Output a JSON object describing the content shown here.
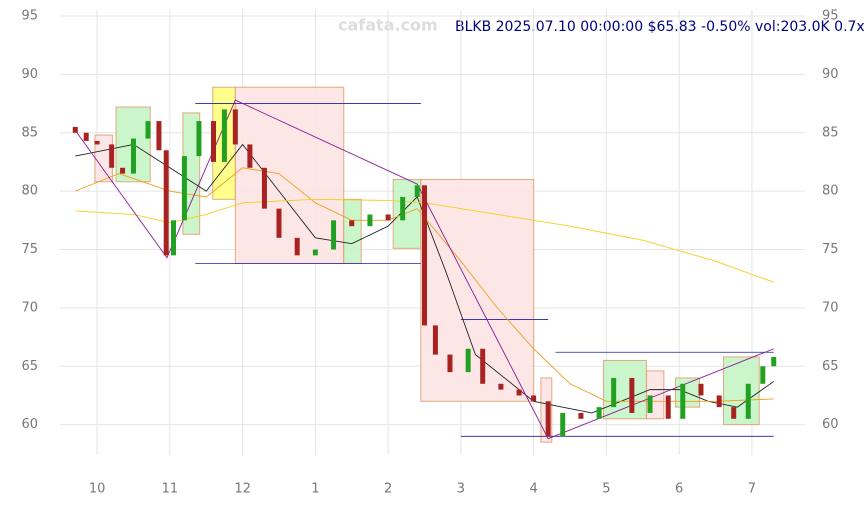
{
  "chart_data": {
    "type": "candlestick",
    "watermark": "cafata.com",
    "info": "BLKB 2025.07.10 00:00:00 $65.83 -0.50% vol:203.0K 0.7x",
    "xlim": [
      9.6,
      19.4
    ],
    "xticks": [
      {
        "value": 10,
        "label": "10"
      },
      {
        "value": 11,
        "label": "11"
      },
      {
        "value": 12,
        "label": "12"
      },
      {
        "value": 13,
        "label": "1"
      },
      {
        "value": 14,
        "label": "2"
      },
      {
        "value": 15,
        "label": "3"
      },
      {
        "value": 16,
        "label": "4"
      },
      {
        "value": 17,
        "label": "5"
      },
      {
        "value": 18,
        "label": "6"
      },
      {
        "value": 19,
        "label": "7"
      }
    ],
    "ylim": [
      57.4,
      95
    ],
    "yticks": [
      60,
      65,
      70,
      75,
      80,
      85,
      90,
      95
    ],
    "grid": true,
    "up_color": "#22a022",
    "down_color": "#a82222",
    "x": [
      9.7,
      9.85,
      10.0,
      10.2,
      10.35,
      10.5,
      10.7,
      10.85,
      10.95,
      11.05,
      11.2,
      11.4,
      11.6,
      11.75,
      11.9,
      12.1,
      12.3,
      12.5,
      12.75,
      13.0,
      13.25,
      13.5,
      13.75,
      14.0,
      14.2,
      14.4,
      14.5,
      14.65,
      14.85,
      15.1,
      15.3,
      15.55,
      15.8,
      16.0,
      16.2,
      16.4,
      16.65,
      16.9,
      17.1,
      17.35,
      17.6,
      17.85,
      18.05,
      18.3,
      18.55,
      18.75,
      18.95,
      19.15,
      19.3
    ],
    "open": [
      85.5,
      85,
      84.3,
      84,
      82,
      81.5,
      84.5,
      86,
      83.5,
      74.5,
      77.5,
      83,
      86,
      82.5,
      87,
      84,
      82,
      78.5,
      76,
      74.5,
      75,
      77.5,
      77,
      78,
      77.5,
      79.5,
      80.5,
      68.5,
      66,
      64.5,
      66.5,
      63.5,
      63,
      62.5,
      62,
      59,
      61,
      60.5,
      61.5,
      64,
      61,
      62.5,
      60.5,
      63.5,
      62.5,
      61.5,
      60.5,
      63.5,
      65
    ],
    "close": [
      85,
      84.3,
      84,
      82,
      81.5,
      84.5,
      86,
      83.5,
      74.5,
      77.5,
      83,
      86,
      82.5,
      87,
      84,
      82,
      78.5,
      76,
      74.5,
      75,
      77.5,
      77,
      78,
      77.5,
      79.5,
      80.5,
      68.5,
      66,
      64.5,
      66.5,
      63.5,
      63,
      62.5,
      62,
      59,
      61,
      60.5,
      61.5,
      64,
      61,
      62.5,
      60.5,
      63.5,
      62.5,
      61.5,
      60.5,
      63.5,
      65,
      65.8
    ],
    "lines": [
      {
        "color": "#222222",
        "x": [
          9.7,
          10.5,
          11.0,
          11.5,
          12.0,
          12.5,
          13.0,
          13.5,
          14.0,
          14.4,
          14.8,
          15.2,
          15.6,
          16.0,
          16.4,
          16.8,
          17.2,
          17.6,
          18.0,
          18.4,
          18.8,
          19.3
        ],
        "values": [
          83,
          84,
          82,
          80,
          84,
          80,
          76,
          75.5,
          77,
          79.5,
          73,
          66,
          64,
          62,
          61.5,
          61,
          62,
          63,
          63,
          62,
          61.5,
          63.7
        ]
      },
      {
        "color": "#f0a020",
        "x": [
          9.7,
          10.3,
          11.0,
          11.5,
          12.0,
          12.5,
          13.0,
          13.5,
          14.0,
          14.4,
          15.0,
          15.5,
          16.0,
          16.5,
          17.0,
          17.5,
          18.0,
          18.5,
          19.3
        ],
        "values": [
          80,
          81.5,
          80,
          79.5,
          82,
          81.5,
          79,
          77.5,
          77.5,
          78.5,
          74,
          70,
          66.5,
          63.5,
          62,
          62,
          62,
          62,
          62.2
        ]
      },
      {
        "color": "#f0d020",
        "x": [
          9.7,
          10.5,
          11.0,
          11.5,
          12.0,
          13.0,
          14.0,
          14.5,
          15.5,
          16.5,
          17.5,
          18.5,
          19.3
        ],
        "values": [
          78.3,
          78,
          77.3,
          78,
          79,
          79.3,
          79.2,
          79,
          78,
          77,
          75.8,
          74,
          72.2
        ]
      },
      {
        "color": "#8a1a9a",
        "x": [
          9.7,
          10.96,
          11.9,
          14.4,
          16.2,
          19.3
        ],
        "values": [
          85.2,
          74.3,
          87.8,
          80.6,
          58.8,
          66.5
        ]
      }
    ],
    "levels": [
      {
        "color": "#2020a0",
        "x": [
          11.35,
          14.45
        ],
        "values": [
          87.5,
          87.5
        ]
      },
      {
        "color": "#2020a0",
        "x": [
          11.35,
          14.45
        ],
        "values": [
          73.8,
          73.8
        ]
      },
      {
        "color": "#2020a0",
        "x": [
          15.0,
          16.2
        ],
        "values": [
          69,
          69
        ]
      },
      {
        "color": "#2020a0",
        "x": [
          16.3,
          19.3
        ],
        "values": [
          66.2,
          66.2
        ]
      },
      {
        "color": "#2020a0",
        "x": [
          15.0,
          19.3
        ],
        "values": [
          59,
          59
        ]
      }
    ],
    "zones": [
      {
        "color": "#fde4e4",
        "x": [
          9.97,
          10.21
        ],
        "values": [
          80.8,
          84.8
        ]
      },
      {
        "color": "#c6f5c6",
        "x": [
          10.26,
          10.73
        ],
        "values": [
          80.8,
          87.2
        ]
      },
      {
        "color": "#c6f5c6",
        "x": [
          11.18,
          11.41
        ],
        "values": [
          76.3,
          86.7
        ]
      },
      {
        "color": "#ffff80",
        "x": [
          11.59,
          11.9
        ],
        "values": [
          79.3,
          88.9
        ]
      },
      {
        "color": "#fde4e4",
        "x": [
          11.9,
          13.39
        ],
        "values": [
          73.8,
          88.9
        ]
      },
      {
        "color": "#c6f5c6",
        "x": [
          13.39,
          13.63
        ],
        "values": [
          73.8,
          79.3
        ]
      },
      {
        "color": "#c6f5c6",
        "x": [
          14.07,
          14.45
        ],
        "values": [
          75.1,
          81
        ]
      },
      {
        "color": "#fde4e4",
        "x": [
          14.45,
          16.0
        ],
        "values": [
          62,
          81
        ]
      },
      {
        "color": "#fde4e4",
        "x": [
          16.1,
          16.25
        ],
        "values": [
          58.5,
          64
        ]
      },
      {
        "color": "#c6f5c6",
        "x": [
          16.96,
          17.55
        ],
        "values": [
          60.5,
          65.5
        ]
      },
      {
        "color": "#fde4e4",
        "x": [
          17.55,
          17.79
        ],
        "values": [
          60.5,
          64.6
        ]
      },
      {
        "color": "#c6f5c6",
        "x": [
          17.95,
          18.28
        ],
        "values": [
          61.5,
          64
        ]
      },
      {
        "color": "#c6f5c6",
        "x": [
          18.61,
          19.1
        ],
        "values": [
          60,
          65.8
        ]
      }
    ]
  }
}
